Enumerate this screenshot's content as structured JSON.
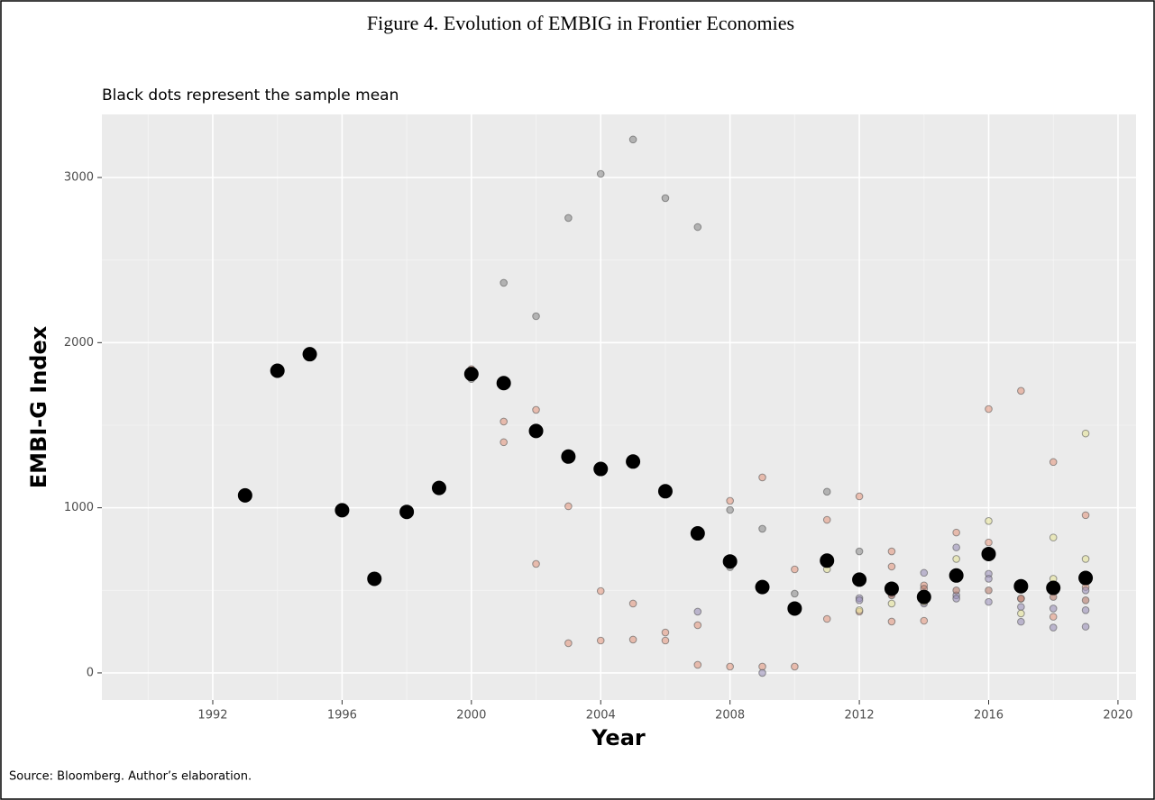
{
  "chart_data": {
    "type": "scatter",
    "title": "Figure 4. Evolution of EMBIG in Frontier Economies",
    "subtitle": "Black dots represent the sample mean",
    "x_label": "Year",
    "y_label": "EMBI-G Index",
    "source": "Source: Bloomberg. Author’s elaboration.",
    "xlim": [
      1988.57,
      2020.56
    ],
    "xticks": [
      1992,
      1996,
      2000,
      2004,
      2008,
      2012,
      2016,
      2020
    ],
    "ylim": [
      -164,
      3382
    ],
    "yticks": [
      0,
      1000,
      2000,
      3000
    ],
    "grid": true,
    "series": [
      {
        "color": "#8c8c8c",
        "x": [
          1999,
          2000,
          2001,
          2002,
          2003,
          2004,
          2005,
          2006,
          2007,
          2008,
          2008,
          2009,
          2010,
          2011,
          2012
        ],
        "values": [
          1140,
          1780,
          2362,
          2160,
          2755,
          3022,
          3230,
          2875,
          2700,
          987,
          640,
          873,
          480,
          1097,
          736
        ]
      },
      {
        "color": "#e39a82",
        "x": [
          2000,
          2001,
          2001,
          2002,
          2002,
          2003,
          2003,
          2004,
          2004,
          2005,
          2005,
          2006,
          2006,
          2007,
          2007,
          2008,
          2008,
          2009,
          2009,
          2010,
          2010,
          2011,
          2011,
          2012,
          2012,
          2013,
          2013,
          2013,
          2014,
          2014,
          2015,
          2016,
          2016,
          2017,
          2017,
          2018,
          2018,
          2019,
          2019
        ],
        "values": [
          1840,
          1522,
          1397,
          1593,
          660,
          1009,
          180,
          496,
          196,
          420,
          202,
          245,
          196,
          289,
          49,
          1042,
          38,
          1184,
          38,
          627,
          38,
          927,
          327,
          1069,
          371,
          736,
          644,
          311,
          316,
          530,
          850,
          1598,
          790,
          1708,
          450,
          1277,
          340,
          955,
          520
        ]
      },
      {
        "color": "#9a90b8",
        "x": [
          2007,
          2009,
          2012,
          2012,
          2013,
          2013,
          2014,
          2014,
          2015,
          2015,
          2015,
          2016,
          2016,
          2016,
          2017,
          2017,
          2018,
          2018,
          2019,
          2019,
          2019
        ],
        "values": [
          371,
          0,
          453,
          440,
          518,
          480,
          606,
          420,
          760,
          470,
          450,
          600,
          570,
          430,
          310,
          400,
          275,
          390,
          280,
          380,
          500
        ]
      },
      {
        "color": "#e4e29a",
        "x": [
          2011,
          2012,
          2013,
          2014,
          2015,
          2016,
          2017,
          2018,
          2018,
          2019,
          2019
        ],
        "values": [
          628,
          380,
          420,
          430,
          690,
          920,
          360,
          820,
          570,
          1450,
          690
        ]
      },
      {
        "color": "#b47a6a",
        "x": [
          2013,
          2014,
          2015,
          2016,
          2017,
          2018,
          2019
        ],
        "values": [
          470,
          510,
          500,
          500,
          450,
          460,
          440
        ]
      },
      {
        "color": "#000000",
        "x": [
          1993,
          1994,
          1995,
          1996,
          1997,
          1998,
          1999,
          2000,
          2001,
          2002,
          2003,
          2004,
          2005,
          2006,
          2007,
          2008,
          2009,
          2010,
          2011,
          2012,
          2013,
          2014,
          2015,
          2016,
          2017,
          2018,
          2019
        ],
        "values": [
          1075,
          1830,
          1930,
          985,
          570,
          975,
          1120,
          1810,
          1755,
          1465,
          1310,
          1235,
          1280,
          1100,
          845,
          675,
          520,
          390,
          680,
          565,
          510,
          460,
          590,
          720,
          525,
          515,
          575
        ]
      }
    ]
  }
}
